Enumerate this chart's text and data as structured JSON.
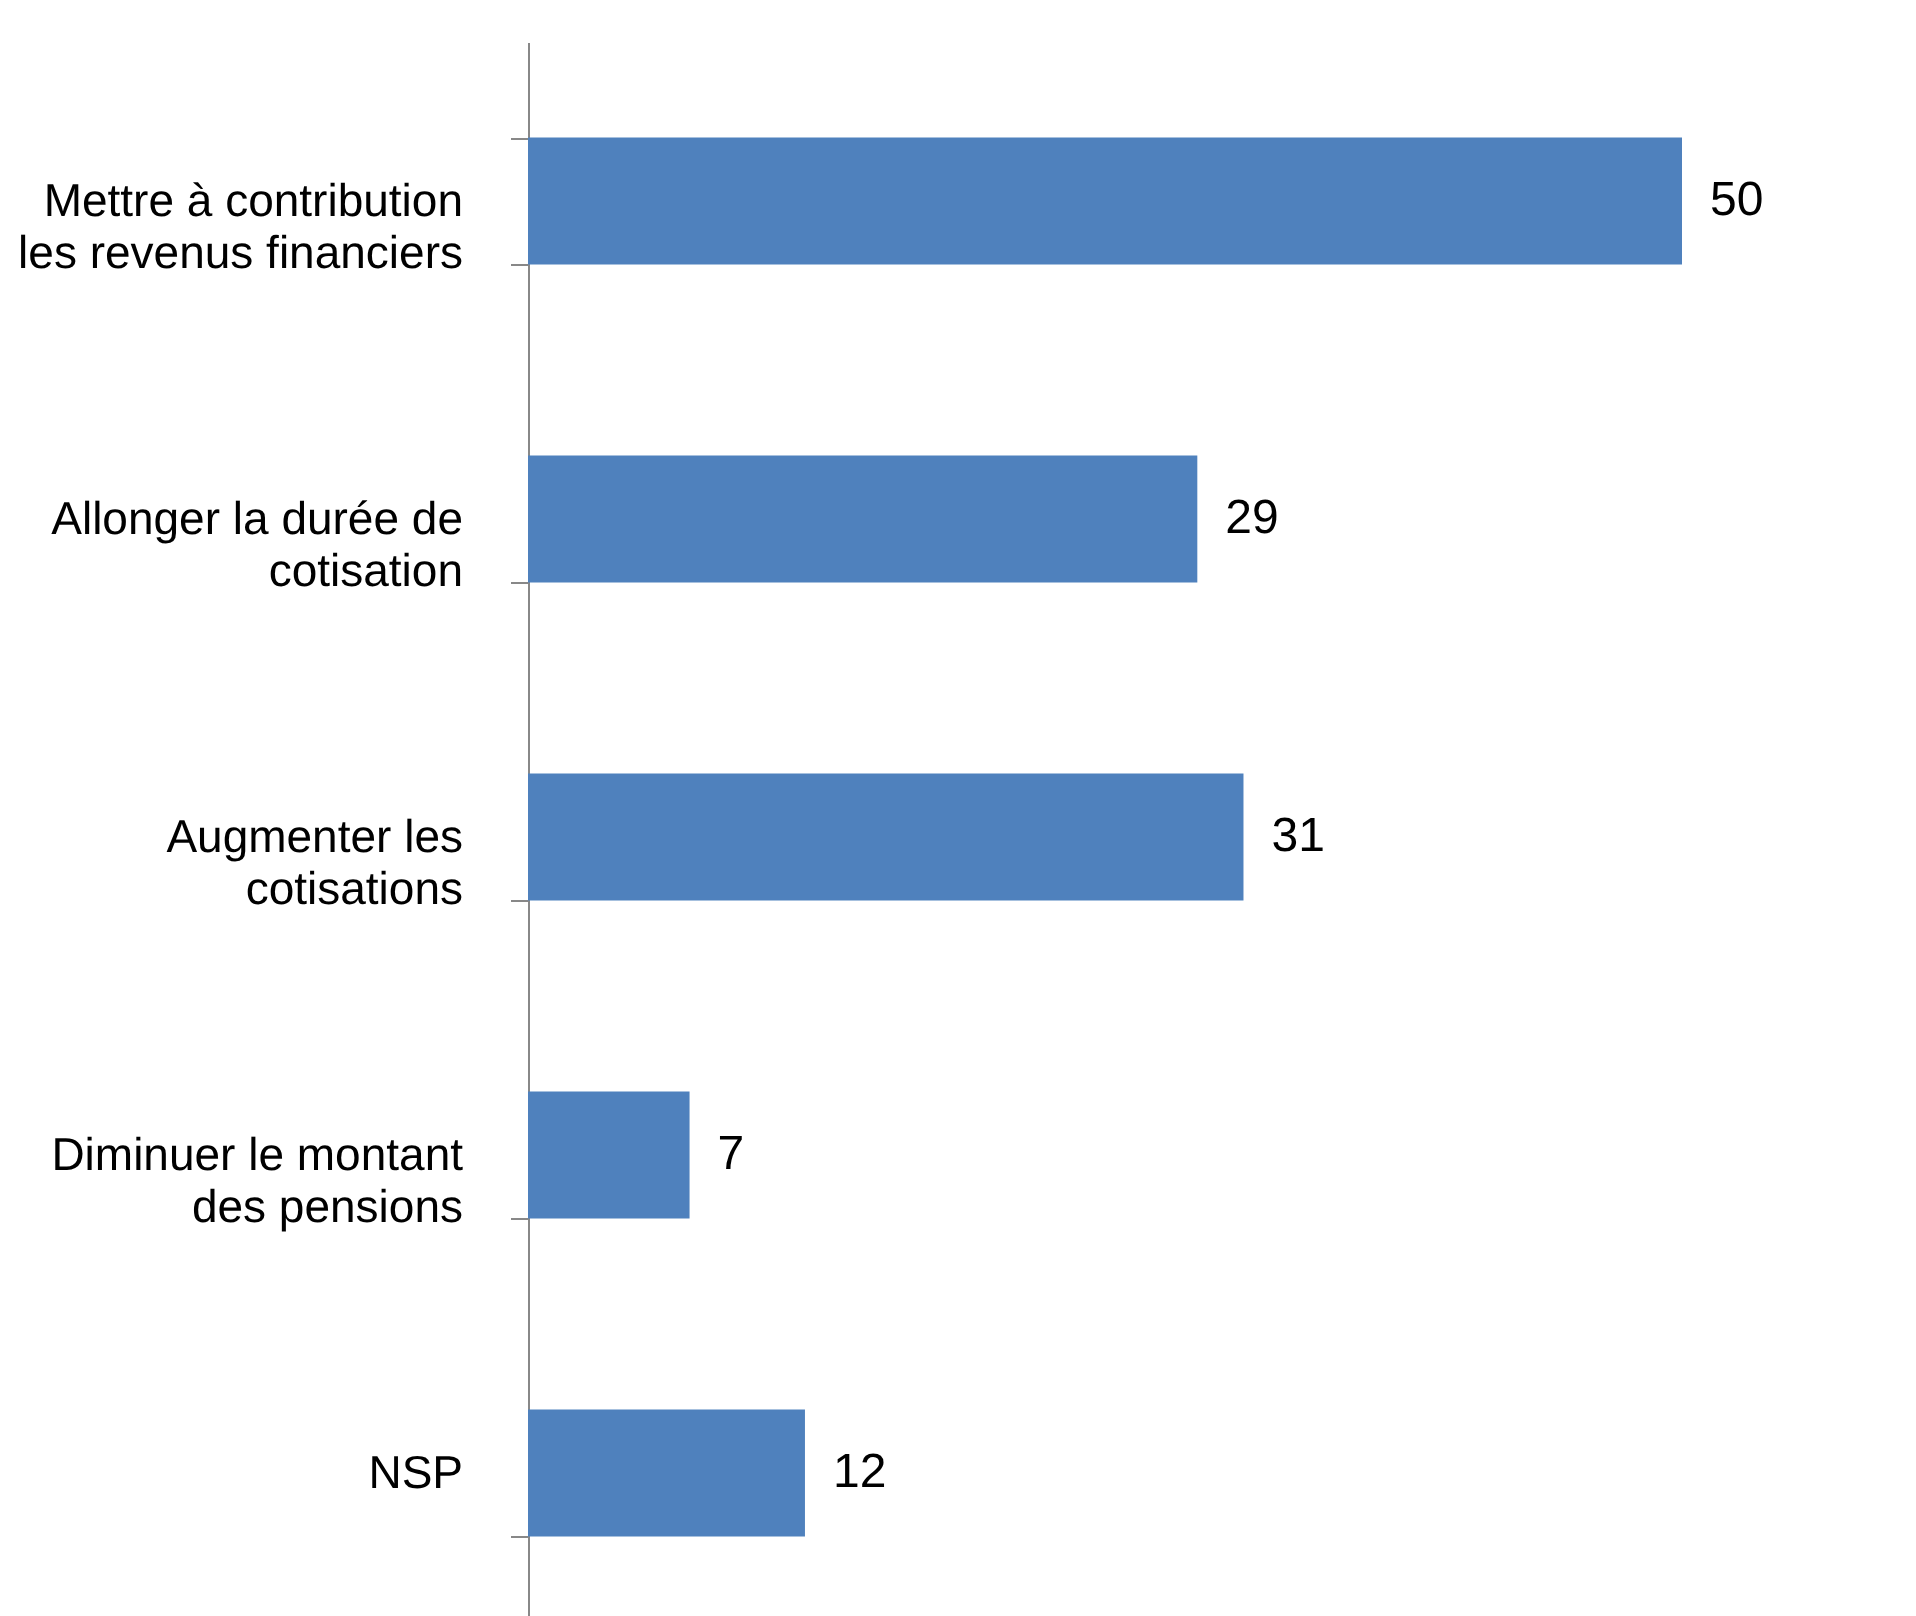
{
  "chart_data": {
    "type": "bar",
    "orientation": "horizontal",
    "categories": [
      "Mettre à contribution les revenus financiers",
      "Allonger la durée de cotisation",
      "Augmenter les cotisations",
      "Diminuer le montant des pensions",
      "NSP"
    ],
    "values": [
      50,
      29,
      31,
      7,
      12
    ],
    "color": "#4f81bd",
    "data_labels": true
  }
}
